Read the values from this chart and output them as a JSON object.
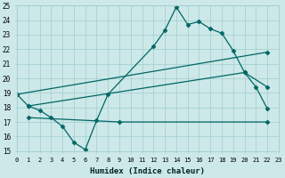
{
  "xlabel": "Humidex (Indice chaleur)",
  "xlim": [
    0,
    23
  ],
  "ylim": [
    15,
    25
  ],
  "yticks": [
    15,
    16,
    17,
    18,
    19,
    20,
    21,
    22,
    23,
    24,
    25
  ],
  "xticks": [
    0,
    1,
    2,
    3,
    4,
    5,
    6,
    7,
    8,
    9,
    10,
    11,
    12,
    13,
    14,
    15,
    16,
    17,
    18,
    19,
    20,
    21,
    22,
    23
  ],
  "background_color": "#cde8e8",
  "grid_color": "#9fcece",
  "line_color": "#006666",
  "curve1_x": [
    0,
    1,
    2,
    3,
    4,
    5,
    6,
    7,
    8,
    12,
    13,
    14,
    15,
    16,
    17,
    18,
    19,
    20,
    21,
    22
  ],
  "curve1_y": [
    18.9,
    18.1,
    17.8,
    17.3,
    16.7,
    15.6,
    15.1,
    17.1,
    18.9,
    22.2,
    23.3,
    24.9,
    23.7,
    23.9,
    23.4,
    23.1,
    21.9,
    20.4,
    19.4,
    17.9
  ],
  "curve2_x": [
    0,
    22
  ],
  "curve2_y": [
    18.9,
    21.8
  ],
  "curve3_x": [
    1,
    9,
    22
  ],
  "curve3_y": [
    17.3,
    17.0,
    17.0
  ],
  "curve4_x": [
    1,
    20,
    22
  ],
  "curve4_y": [
    18.1,
    20.4,
    19.4
  ],
  "marker_size": 2.5,
  "linewidth": 0.9
}
